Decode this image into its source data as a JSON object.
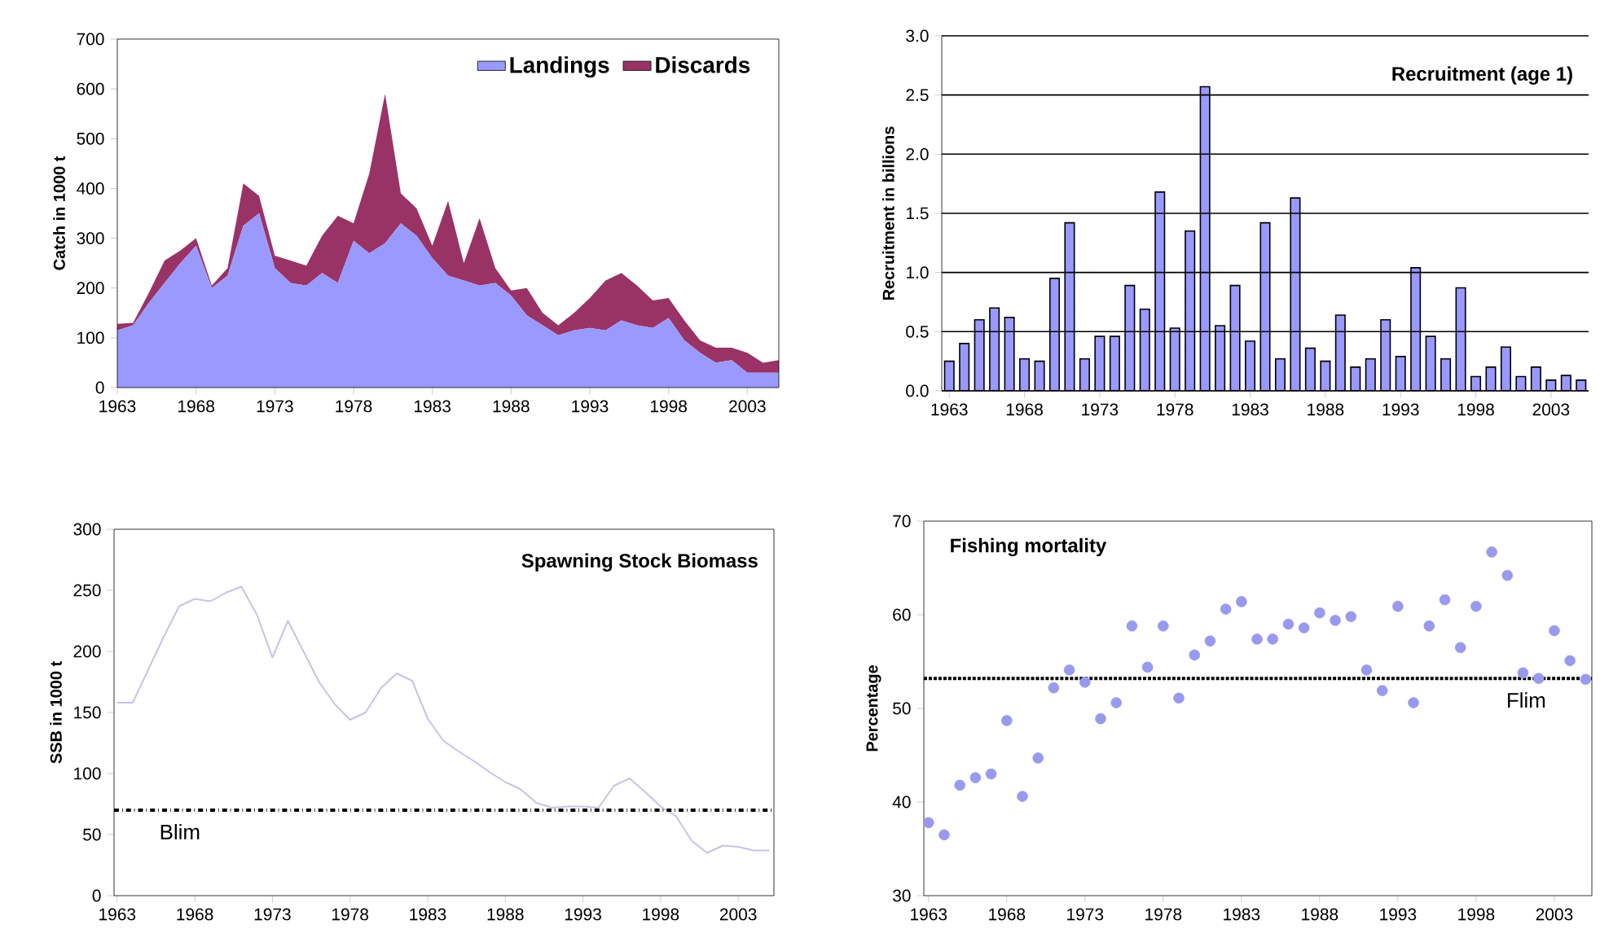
{
  "chart_data": [
    {
      "type": "area",
      "stacked": true,
      "ylabel": "Catch in 1000 t",
      "x": [
        1963,
        1964,
        1965,
        1966,
        1967,
        1968,
        1969,
        1970,
        1971,
        1972,
        1973,
        1974,
        1975,
        1976,
        1977,
        1978,
        1979,
        1980,
        1981,
        1982,
        1983,
        1984,
        1985,
        1986,
        1987,
        1988,
        1989,
        1990,
        1991,
        1992,
        1993,
        1994,
        1995,
        1996,
        1997,
        1998,
        1999,
        2000,
        2001,
        2002,
        2003,
        2004,
        2005
      ],
      "series": [
        {
          "name": "Landings",
          "color": "#9999ff",
          "values": [
            115,
            125,
            170,
            210,
            250,
            285,
            200,
            225,
            325,
            350,
            240,
            210,
            205,
            230,
            210,
            295,
            270,
            290,
            330,
            305,
            260,
            225,
            215,
            205,
            210,
            185,
            145,
            125,
            105,
            115,
            120,
            115,
            135,
            125,
            120,
            140,
            95,
            70,
            50,
            55,
            30,
            30,
            30
          ]
        },
        {
          "name": "Discards",
          "color": "#993366",
          "values": [
            13,
            5,
            20,
            45,
            25,
            15,
            5,
            15,
            85,
            35,
            25,
            45,
            40,
            75,
            135,
            35,
            160,
            300,
            60,
            55,
            25,
            150,
            35,
            135,
            30,
            10,
            55,
            25,
            20,
            35,
            60,
            100,
            95,
            80,
            55,
            40,
            40,
            25,
            30,
            25,
            40,
            20,
            25
          ]
        }
      ],
      "xlim": [
        1963,
        2005
      ],
      "xticks": [
        1963,
        1968,
        1973,
        1978,
        1983,
        1988,
        1993,
        1998,
        2003
      ],
      "ylim": [
        0,
        700
      ],
      "yticks": [
        0,
        100,
        200,
        300,
        400,
        500,
        600,
        700
      ],
      "legend": "top right"
    },
    {
      "type": "bar",
      "title": "Recruitment (age 1)",
      "ylabel": "Recruitment in billions",
      "x": [
        1963,
        1964,
        1965,
        1966,
        1967,
        1968,
        1969,
        1970,
        1971,
        1972,
        1973,
        1974,
        1975,
        1976,
        1977,
        1978,
        1979,
        1980,
        1981,
        1982,
        1983,
        1984,
        1985,
        1986,
        1987,
        1988,
        1989,
        1990,
        1991,
        1992,
        1993,
        1994,
        1995,
        1996,
        1997,
        1998,
        1999,
        2000,
        2001,
        2002,
        2003,
        2004,
        2005
      ],
      "series": [
        {
          "color": "#9999ff",
          "values": [
            0.25,
            0.4,
            0.6,
            0.7,
            0.62,
            0.27,
            0.25,
            0.95,
            1.42,
            0.27,
            0.46,
            0.46,
            0.89,
            0.69,
            1.68,
            0.53,
            1.35,
            2.57,
            0.55,
            0.89,
            0.42,
            1.42,
            0.27,
            1.63,
            0.36,
            0.25,
            0.64,
            0.2,
            0.27,
            0.6,
            0.29,
            1.04,
            0.46,
            0.27,
            0.87,
            0.12,
            0.2,
            0.37,
            0.12,
            0.2,
            0.09,
            0.13,
            0.09
          ]
        }
      ],
      "xlim": [
        1962.5,
        2005.5
      ],
      "xticks": [
        1963,
        1968,
        1973,
        1978,
        1983,
        1988,
        1993,
        1998,
        2003
      ],
      "ylim": [
        0,
        3
      ],
      "yticks": [
        {
          "value": 0,
          "label": "0.0"
        },
        {
          "value": 0.5,
          "label": "0.5"
        },
        {
          "value": 1,
          "label": "1.0"
        },
        {
          "value": 1.5,
          "label": "1.5"
        },
        {
          "value": 2,
          "label": "2.0"
        },
        {
          "value": 2.5,
          "label": "2.5"
        },
        {
          "value": 3,
          "label": "3.0"
        }
      ],
      "grid": "y"
    },
    {
      "type": "line",
      "title": "Spawning Stock Biomass",
      "ylabel": "SSB in 1000 t",
      "x": [
        1963,
        1964,
        1965,
        1966,
        1967,
        1968,
        1969,
        1970,
        1971,
        1972,
        1973,
        1974,
        1975,
        1976,
        1977,
        1978,
        1979,
        1980,
        1981,
        1982,
        1983,
        1984,
        1985,
        1986,
        1987,
        1988,
        1989,
        1990,
        1991,
        1992,
        1993,
        1994,
        1995,
        1996,
        1997,
        1998,
        1999,
        2000,
        2001,
        2002,
        2003,
        2004,
        2005
      ],
      "series": [
        {
          "color": "#c4c4e8",
          "values": [
            158,
            158,
            185,
            212,
            237,
            243,
            241,
            248,
            253,
            230,
            195,
            225,
            200,
            175,
            157,
            144,
            150,
            170,
            182,
            176,
            145,
            127,
            118,
            110,
            101,
            93,
            87,
            76,
            72,
            73,
            73,
            72,
            90,
            96,
            85,
            73,
            65,
            45,
            35,
            41,
            40,
            37,
            37
          ]
        }
      ],
      "xlim": [
        1962.8,
        2005.3
      ],
      "xticks": [
        1963,
        1968,
        1973,
        1978,
        1983,
        1988,
        1993,
        1998,
        2003
      ],
      "ylim": [
        0,
        300
      ],
      "yticks": [
        0,
        50,
        100,
        150,
        200,
        250,
        300
      ],
      "ref_lines": [
        {
          "axis": "y",
          "value": 70,
          "label": "Blim",
          "color": "#000000",
          "line_style": "dashdot"
        }
      ]
    },
    {
      "type": "scatter",
      "title": "Fishing mortality",
      "ylabel": "Percentage",
      "marker": "circle",
      "x": [
        1963,
        1964,
        1965,
        1966,
        1967,
        1968,
        1969,
        1970,
        1971,
        1972,
        1973,
        1974,
        1975,
        1976,
        1977,
        1978,
        1979,
        1980,
        1981,
        1982,
        1983,
        1984,
        1985,
        1986,
        1987,
        1988,
        1989,
        1990,
        1991,
        1992,
        1993,
        1994,
        1995,
        1996,
        1997,
        1998,
        1999,
        2000,
        2001,
        2002,
        2003,
        2004,
        2005
      ],
      "series": [
        {
          "color": "#9999ee",
          "values": [
            37.8,
            36.5,
            41.8,
            42.6,
            43.0,
            48.7,
            40.6,
            44.7,
            52.2,
            54.1,
            52.8,
            48.9,
            50.6,
            58.8,
            54.4,
            58.8,
            51.1,
            55.7,
            57.2,
            60.6,
            61.4,
            57.4,
            57.4,
            59.0,
            58.6,
            60.2,
            59.4,
            59.8,
            54.1,
            51.9,
            60.9,
            50.6,
            58.8,
            61.6,
            56.5,
            60.9,
            66.7,
            64.2,
            53.8,
            53.2,
            58.3,
            55.1,
            53.1
          ]
        }
      ],
      "xlim": [
        1962.7,
        2005.4
      ],
      "xticks": [
        1963,
        1968,
        1973,
        1978,
        1983,
        1988,
        1993,
        1998,
        2003
      ],
      "ylim": [
        30,
        70
      ],
      "yticks": [
        30,
        40,
        50,
        60,
        70
      ],
      "ref_lines": [
        {
          "axis": "y",
          "value": 53.2,
          "label": "Flim",
          "color": "#000000",
          "line_style": "dotted"
        }
      ]
    }
  ]
}
